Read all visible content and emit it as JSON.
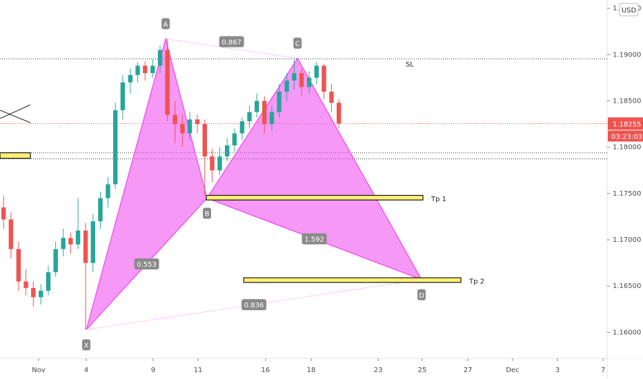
{
  "chart_data": {
    "type": "candlestick",
    "currency": "USD",
    "countdown": "03:23:03",
    "last_price": {
      "value": 1.18255,
      "label": "1.18255"
    },
    "up_color": "#26a69a",
    "down_color": "#ef5350",
    "ylim": [
      1.1572,
      1.1959
    ],
    "yticks": [
      {
        "value": 1.195,
        "label": "1.19500"
      },
      {
        "value": 1.19,
        "label": "1.19000"
      },
      {
        "value": 1.185,
        "label": "1.18500"
      },
      {
        "value": 1.18,
        "label": "1.18000"
      },
      {
        "value": 1.175,
        "label": "1.17500"
      },
      {
        "value": 1.17,
        "label": "1.17000"
      },
      {
        "value": 1.165,
        "label": "1.16500"
      },
      {
        "value": 1.16,
        "label": "1.16000"
      }
    ],
    "xlim": [
      -0.86,
      26.3
    ],
    "xticks": [
      {
        "value": 0.87,
        "label": "Nov"
      },
      {
        "value": 3,
        "label": "4"
      },
      {
        "value": 5.99,
        "label": "9"
      },
      {
        "value": 8,
        "label": "11"
      },
      {
        "value": 11.02,
        "label": "16"
      },
      {
        "value": 13.06,
        "label": "18"
      },
      {
        "value": 16.06,
        "label": "23"
      },
      {
        "value": 18.03,
        "label": "25"
      },
      {
        "value": 20.07,
        "label": "27"
      },
      {
        "value": 22.07,
        "label": "Dec"
      },
      {
        "value": 24.08,
        "label": "3"
      },
      {
        "value": 26.12,
        "label": "7"
      }
    ],
    "x": [
      -0.7,
      -0.37,
      -0.03,
      0.3,
      0.63,
      0.97,
      1.3,
      1.63,
      1.97,
      2.3,
      2.63,
      2.97,
      3.3,
      3.63,
      3.97,
      4.3,
      4.63,
      4.97,
      5.3,
      5.63,
      5.97,
      6.3,
      6.63,
      6.97,
      7.3,
      7.63,
      7.97,
      8.3,
      8.63,
      8.97,
      9.3,
      9.63,
      9.97,
      10.3,
      10.63,
      10.97,
      11.3,
      11.63,
      11.97,
      12.3,
      12.63,
      12.97,
      13.3,
      13.63,
      13.97,
      14.3
    ],
    "ohlc": [
      [
        1.1735,
        1.1748,
        1.1712,
        1.1722
      ],
      [
        1.1722,
        1.173,
        1.168,
        1.169
      ],
      [
        1.169,
        1.1698,
        1.1645,
        1.1655
      ],
      [
        1.1655,
        1.1668,
        1.164,
        1.1648
      ],
      [
        1.1648,
        1.1655,
        1.1628,
        1.1638
      ],
      [
        1.1638,
        1.1652,
        1.163,
        1.1645
      ],
      [
        1.1645,
        1.1672,
        1.164,
        1.1665
      ],
      [
        1.1665,
        1.1698,
        1.166,
        1.169
      ],
      [
        1.169,
        1.1712,
        1.1682,
        1.1702
      ],
      [
        1.1702,
        1.1708,
        1.1685,
        1.1695
      ],
      [
        1.1695,
        1.1745,
        1.169,
        1.171
      ],
      [
        1.171,
        1.1718,
        1.1603,
        1.1675
      ],
      [
        1.1675,
        1.1728,
        1.1665,
        1.172
      ],
      [
        1.172,
        1.1752,
        1.1712,
        1.1745
      ],
      [
        1.1745,
        1.1768,
        1.1735,
        1.176
      ],
      [
        1.176,
        1.1848,
        1.1755,
        1.184
      ],
      [
        1.184,
        1.1878,
        1.183,
        1.187
      ],
      [
        1.187,
        1.1885,
        1.1858,
        1.1878
      ],
      [
        1.1878,
        1.1892,
        1.187,
        1.1888
      ],
      [
        1.1888,
        1.1893,
        1.1872,
        1.188
      ],
      [
        1.188,
        1.1895,
        1.1875,
        1.1888
      ],
      [
        1.1888,
        1.191,
        1.188,
        1.1905
      ],
      [
        1.1905,
        1.1917,
        1.1828,
        1.1835
      ],
      [
        1.1835,
        1.185,
        1.1805,
        1.1825
      ],
      [
        1.1825,
        1.1835,
        1.18,
        1.1815
      ],
      [
        1.1815,
        1.1838,
        1.1808,
        1.183
      ],
      [
        1.183,
        1.1835,
        1.1815,
        1.1825
      ],
      [
        1.1825,
        1.183,
        1.1748,
        1.179
      ],
      [
        1.179,
        1.1798,
        1.1762,
        1.1775
      ],
      [
        1.1775,
        1.18,
        1.177,
        1.179
      ],
      [
        1.179,
        1.181,
        1.1785,
        1.1802
      ],
      [
        1.1802,
        1.182,
        1.1795,
        1.1815
      ],
      [
        1.1815,
        1.1832,
        1.1808,
        1.1828
      ],
      [
        1.1828,
        1.1845,
        1.182,
        1.1838
      ],
      [
        1.1838,
        1.1858,
        1.1832,
        1.185
      ],
      [
        1.185,
        1.1855,
        1.1815,
        1.1825
      ],
      [
        1.1825,
        1.1845,
        1.1818,
        1.1838
      ],
      [
        1.1838,
        1.1868,
        1.1832,
        1.186
      ],
      [
        1.186,
        1.188,
        1.185,
        1.1872
      ],
      [
        1.1872,
        1.1896,
        1.1862,
        1.188
      ],
      [
        1.188,
        1.1885,
        1.1855,
        1.1865
      ],
      [
        1.1865,
        1.1882,
        1.1858,
        1.1875
      ],
      [
        1.1875,
        1.1892,
        1.1868,
        1.1888
      ],
      [
        1.1888,
        1.189,
        1.1852,
        1.186
      ],
      [
        1.186,
        1.1868,
        1.1838,
        1.1848
      ],
      [
        1.1848,
        1.1852,
        1.182,
        1.18255
      ]
    ],
    "pattern": {
      "color": "#ee44ee",
      "points": [
        {
          "label": "X",
          "x": 3,
          "y": 1.1603
        },
        {
          "label": "A",
          "x": 6.55,
          "y": 1.1917
        },
        {
          "label": "B",
          "x": 8.4,
          "y": 1.1745
        },
        {
          "label": "C",
          "x": 12.45,
          "y": 1.1896
        },
        {
          "label": "D",
          "x": 18.0,
          "y": 1.1657
        }
      ],
      "ratios": [
        0.553,
        0.867,
        1.592,
        0.836
      ]
    },
    "levels": [
      {
        "label": "SL",
        "value": 1.18955
      },
      {
        "value": 1.1794
      },
      {
        "value": 1.17875
      }
    ],
    "zones": [
      {
        "x": [
          -0.86,
          0.5
        ],
        "y": [
          1.1788,
          1.1794
        ]
      },
      {
        "label": "Tp 1",
        "x": [
          8.37,
          18.06
        ],
        "y": [
          1.1743,
          1.1748
        ]
      },
      {
        "label": "Tp 2",
        "x": [
          10.04,
          19.76
        ],
        "y": [
          1.1654,
          1.1659
        ]
      }
    ]
  }
}
